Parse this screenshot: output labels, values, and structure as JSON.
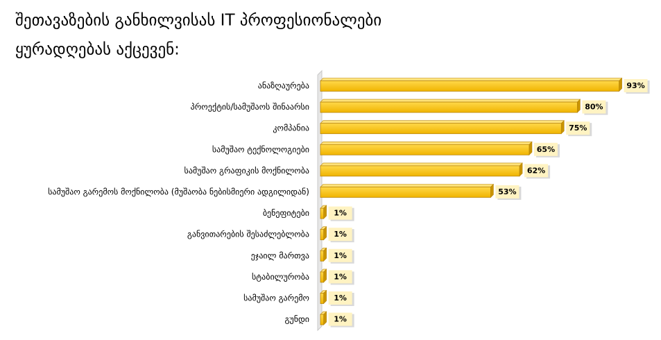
{
  "chart_data": {
    "type": "bar",
    "orientation": "horizontal",
    "title": [
      "შეთავაზების განხილვისას IT პროფესიონალები",
      "ყურადღებას აქცევენ:"
    ],
    "categories": [
      "ანაზღაურება",
      "პროექტის/სამუშაოს შინაარსი",
      "კომპანია",
      "სამუშაო ტექნოლოგიები",
      "სამუშაო გრაფიკის მოქნილობა",
      "სამუშაო გარემოს მოქნილობა (მუშაობა ნებისმიერი ადგილიდან)",
      "ბენეფიტები",
      "განვითარების შესაძლებლობა",
      "ეჯაილ მართვა",
      "სტაბილურობა",
      "სამუშაო გარემო",
      "გუნდი"
    ],
    "values": [
      93,
      80,
      75,
      65,
      62,
      53,
      1,
      1,
      1,
      1,
      1,
      1
    ],
    "value_labels": [
      "93%",
      "80%",
      "75%",
      "65%",
      "62%",
      "53%",
      "1%",
      "1%",
      "1%",
      "1%",
      "1%",
      "1%"
    ],
    "color": "#ffc000"
  }
}
